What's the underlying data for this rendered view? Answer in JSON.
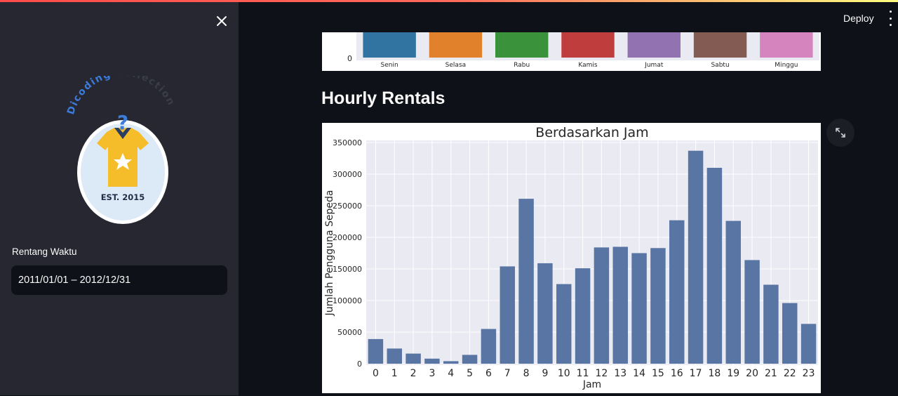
{
  "sidebar": {
    "logo": {
      "arc_text_1": "Dicoding",
      "arc_text_2": "Collection",
      "est_text": "EST. 2015"
    },
    "date_filter": {
      "label": "Rentang Waktu",
      "value": "2011/01/01 – 2012/12/31"
    }
  },
  "header": {
    "deploy_label": "Deploy"
  },
  "sections": {
    "hourly_title": "Hourly Rentals"
  },
  "colors": {
    "accent_red": "#ff4b4b",
    "bar_blue": "#5975a4",
    "plot_bg": "#eaeaf2"
  },
  "chart_data": [
    {
      "type": "bar",
      "title": "",
      "categories": [
        "Senin",
        "Selasa",
        "Rabu",
        "Kamis",
        "Jumat",
        "Sabtu",
        "Minggu"
      ],
      "colors": [
        "#3274a1",
        "#e1812c",
        "#3a923a",
        "#c03d3e",
        "#9372b2",
        "#845b53",
        "#d684bd"
      ],
      "visible_ytick": "0",
      "note": "partially visible, cropped at top"
    },
    {
      "type": "bar",
      "title": "Berdasarkan Jam",
      "xlabel": "Jam",
      "ylabel": "Jumlah Pengguna Sepeda",
      "categories": [
        "0",
        "1",
        "2",
        "3",
        "4",
        "5",
        "6",
        "7",
        "8",
        "9",
        "10",
        "11",
        "12",
        "13",
        "14",
        "15",
        "16",
        "17",
        "18",
        "19",
        "20",
        "21",
        "22",
        "23"
      ],
      "values": [
        39000,
        24000,
        16000,
        8000,
        4000,
        14000,
        55000,
        154000,
        261000,
        159000,
        126000,
        151000,
        184000,
        185000,
        175000,
        183000,
        227000,
        337000,
        310000,
        226000,
        164000,
        125000,
        96000,
        63000
      ],
      "ylim": [
        0,
        350000
      ],
      "yticks": [
        "0",
        "50000",
        "100000",
        "150000",
        "200000",
        "250000",
        "300000",
        "350000"
      ],
      "grid": true
    }
  ]
}
